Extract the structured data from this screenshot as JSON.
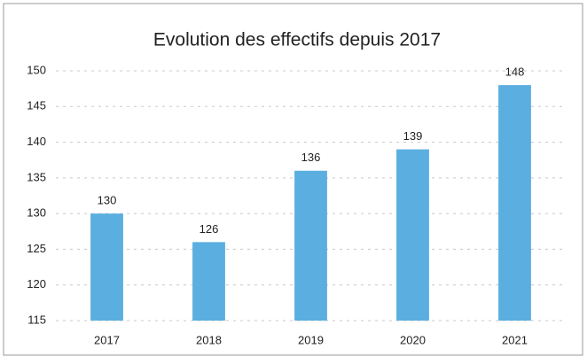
{
  "chart_data": {
    "type": "bar",
    "title": "Evolution des effectifs depuis 2017",
    "categories": [
      "2017",
      "2018",
      "2019",
      "2020",
      "2021"
    ],
    "values": [
      130,
      126,
      136,
      139,
      148
    ],
    "color": "#5aaee0",
    "ylim": [
      115,
      150
    ],
    "yticks": [
      115,
      120,
      125,
      130,
      135,
      140,
      145,
      150
    ],
    "grid": true
  }
}
